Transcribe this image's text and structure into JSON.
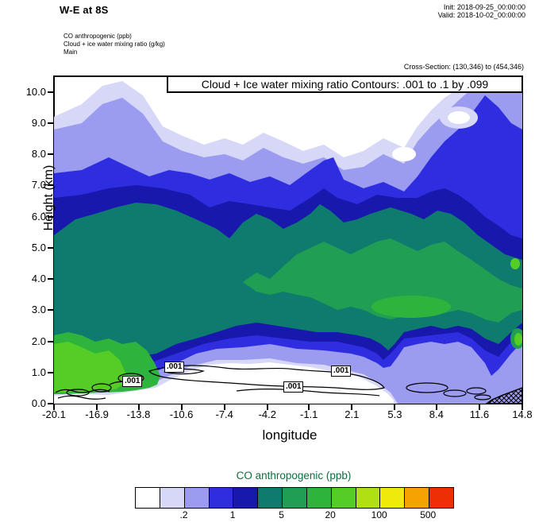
{
  "header": {
    "title": "W-E at 8S",
    "init_line": "Init: 2018-09-25_00:00:00",
    "valid_line": "Valid: 2018-10-02_00:00:00",
    "field_lines": {
      "line1": "CO anthropogenic   (ppb)",
      "line2": "Cloud + ice water mixing ratio   (g/kg)",
      "line3": "Main"
    },
    "cross_section": "Cross-Section: (130,346) to (454,346)"
  },
  "plot": {
    "inner_title": "Cloud + Ice water mixing ratio Contours: .001 to .1 by .099",
    "ylabel": "Height (km)",
    "xlabel": "longitude",
    "y_ticks": [
      "10.0",
      "9.0",
      "8.0",
      "7.0",
      "6.0",
      "5.0",
      "4.0",
      "3.0",
      "2.0",
      "1.0",
      "0.0"
    ],
    "x_ticks": [
      "-20.1",
      "-16.9",
      "-13.8",
      "-10.6",
      "-7.4",
      "-4.2",
      "-1.1",
      "2.1",
      "5.3",
      "8.4",
      "11.6",
      "14.8"
    ],
    "contour_label": ".001"
  },
  "colorbar": {
    "title": "CO anthropogenic  (ppb)",
    "title_color": "#0d6e3f",
    "colors": [
      "#ffffff",
      "#d7d7f8",
      "#9b9bf0",
      "#2e2ee0",
      "#1818ac",
      "#0f7a6e",
      "#1f9e54",
      "#2eb33c",
      "#55cd26",
      "#b0df14",
      "#f0ea0c",
      "#f5a303",
      "#ee2e05"
    ],
    "tick_labels": [
      ".2",
      "1",
      "5",
      "20",
      "100",
      "500"
    ]
  },
  "chart_data": {
    "type": "heatmap",
    "title": "W-E at 8S",
    "subtitle": "Cross-Section: (130,346) to (454,346)",
    "init": "2018-09-25_00:00:00",
    "valid": "2018-10-02_00:00:00",
    "xlabel": "longitude",
    "ylabel": "Height (km)",
    "x_ticks": [
      -20.1,
      -16.9,
      -13.8,
      -10.6,
      -7.4,
      -4.2,
      -1.1,
      2.1,
      5.3,
      8.4,
      11.6,
      14.8
    ],
    "y_ticks": [
      0,
      1,
      2,
      3,
      4,
      5,
      6,
      7,
      8,
      9,
      10
    ],
    "xlim": [
      -20.1,
      14.8
    ],
    "ylim": [
      0,
      10.5
    ],
    "grid": false,
    "legend_position": "bottom colorbar",
    "fill_variable": "CO anthropogenic (ppb)",
    "fill_levels": [
      0.1,
      0.2,
      0.5,
      1,
      2,
      5,
      10,
      20,
      50,
      100,
      200,
      500
    ],
    "fill_colors": [
      "#ffffff",
      "#d7d7f8",
      "#9b9bf0",
      "#2e2ee0",
      "#1818ac",
      "#0f7a6e",
      "#1f9e54",
      "#2eb33c",
      "#55cd26",
      "#b0df14",
      "#f0ea0c",
      "#f5a303",
      "#ee2e05"
    ],
    "overlay_contours": {
      "variable": "Cloud + Ice water mixing ratio (g/kg)",
      "levels": [
        0.001,
        0.1
      ],
      "note": "Contours: .001 to .1 by .099",
      "label": ".001",
      "label_locations_lon_km": [
        [
          -10.8,
          1.15
        ],
        [
          1.6,
          1.0
        ],
        [
          -1.9,
          0.55
        ],
        [
          -14.0,
          0.7
        ]
      ]
    },
    "regions": [
      {
        "level_ppb": "0.1-0.5 (lavender/periwinkle)",
        "extent": "plume envelope from ~1 km up to 8-10.5 km across the whole section; reaches top of domain near -15 and east of 10"
      },
      {
        "level_ppb": "0.5-2 (blue/dark blue)",
        "extent": "band ~5.5-8 km across section, spike to ~8 km near lon 0.5, rising to ~10 km east of lon 8-13"
      },
      {
        "level_ppb": "2-5 (dark teal)",
        "extent": "core layer ~2-6.5 km across full section, lowering to ~1.5 km at eastern edge"
      },
      {
        "level_ppb": "5-20 (greens)",
        "extent": "inner core ~2.6-5.3 km from lon -6 eastward to 14.8; boundary-layer maximum 0.3-2.2 km west of lon -12"
      },
      {
        "level_ppb": "20-50 (bright green)",
        "extent": "near-surface maximum ~0.3-1.8 km west of lon -15; small spots at eastern edge near 2 km and 4.5 km"
      },
      {
        "level_ppb": "<0.1 (white)",
        "extent": "above plume top and shallow near-surface wedge 0-1.3 km between lon -16 and 5 where cloud/ice .001 contours lie"
      }
    ],
    "terrain": "black hatched surface terrain at bottom-right corner, lon > 12.5, below ~0.5 km"
  }
}
